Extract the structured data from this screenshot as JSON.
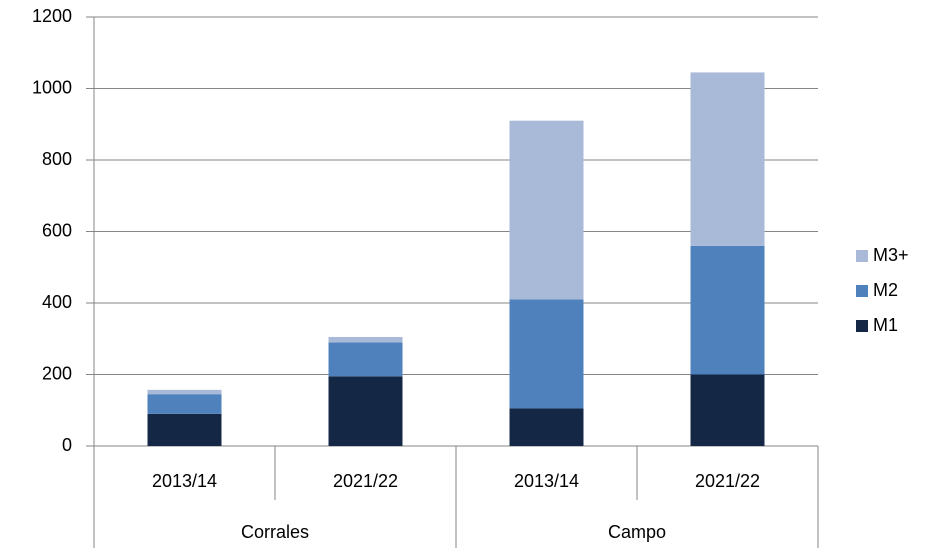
{
  "chart_data": {
    "type": "stacked-bar",
    "categories": [
      "2013/14",
      "2021/22",
      "2013/14",
      "2021/22"
    ],
    "category_groups": [
      "Corrales",
      "Campo"
    ],
    "series": [
      {
        "name": "M1",
        "color": "#142845",
        "values": [
          90,
          195,
          105,
          200
        ]
      },
      {
        "name": "M2",
        "color": "#4f81bd",
        "values": [
          55,
          95,
          305,
          360
        ]
      },
      {
        "name": "M3+",
        "color": "#a9bad8",
        "values": [
          12,
          15,
          500,
          485
        ]
      }
    ],
    "ylim": [
      0,
      1200
    ],
    "yticks": [
      0,
      200,
      400,
      600,
      800,
      1000,
      1200
    ],
    "grid": true,
    "legend": "right"
  }
}
